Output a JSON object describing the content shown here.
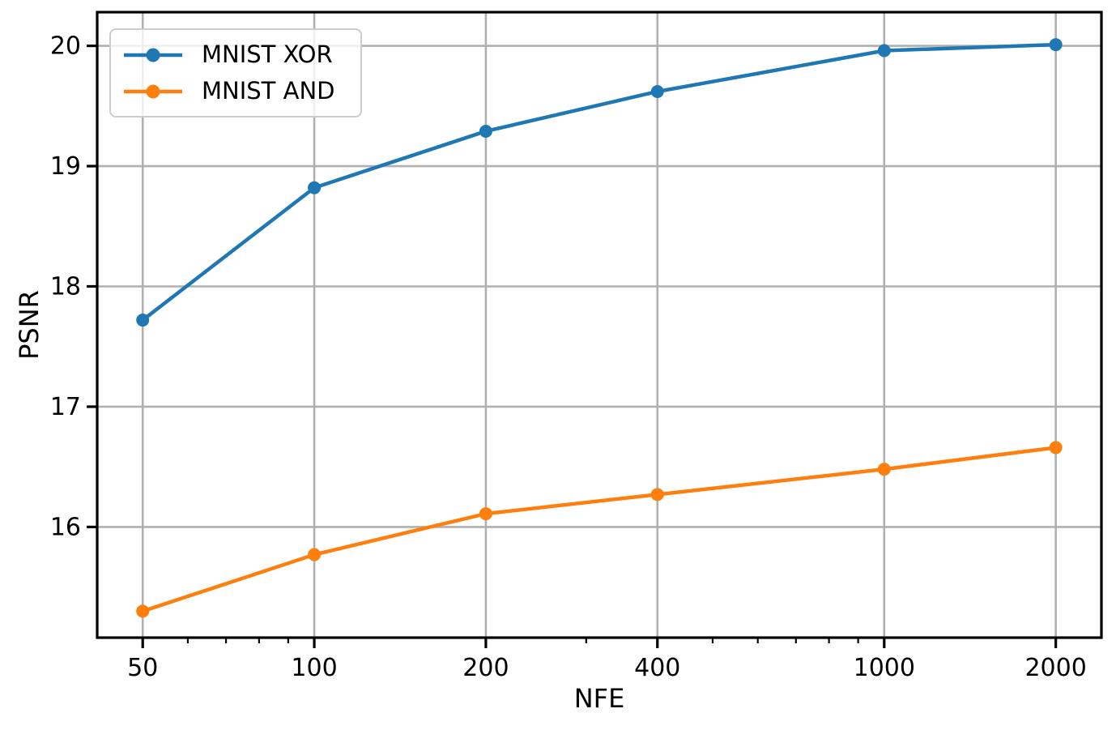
{
  "chart_data": {
    "type": "line",
    "x_scale": "log",
    "x": [
      50,
      100,
      200,
      400,
      1000,
      2000
    ],
    "series": [
      {
        "name": "MNIST XOR",
        "color": "#1f77b4",
        "values": [
          17.72,
          18.82,
          19.29,
          19.62,
          19.96,
          20.01
        ]
      },
      {
        "name": "MNIST AND",
        "color": "#ff7f0e",
        "values": [
          15.3,
          15.77,
          16.11,
          16.27,
          16.48,
          16.66
        ]
      }
    ],
    "title": "",
    "xlabel": "NFE",
    "ylabel": "PSNR",
    "xlim": [
      41.6,
      2405
    ],
    "ylim": [
      15.08,
      20.28
    ],
    "xticks": [
      50,
      100,
      200,
      400,
      1000,
      2000
    ],
    "xtick_labels": [
      "50",
      "100",
      "200",
      "400",
      "1000",
      "2000"
    ],
    "x_minor_ticks": [
      60,
      70,
      80,
      90,
      300,
      500,
      600,
      700,
      800,
      900
    ],
    "yticks": [
      16,
      17,
      18,
      19,
      20
    ],
    "ytick_labels": [
      "16",
      "17",
      "18",
      "19",
      "20"
    ],
    "grid": true,
    "grid_color": "#b0b0b0",
    "axis_color": "#000000",
    "background_color": "#ffffff",
    "legend_position": "upper left",
    "marker": "circle"
  }
}
